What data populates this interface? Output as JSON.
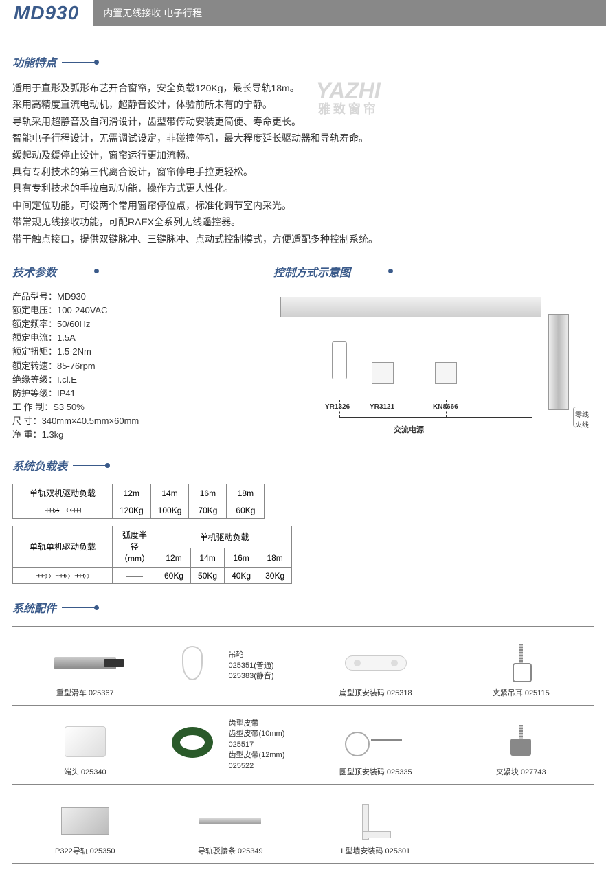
{
  "header": {
    "model": "MD930",
    "subtitle": "内置无线接收 电子行程"
  },
  "watermark": {
    "brand": "YAZHI",
    "sub": "雅致窗帘"
  },
  "sections": {
    "features_title": "功能特点",
    "specs_title": "技术参数",
    "control_title": "控制方式示意图",
    "load_title": "系统负载表",
    "accessories_title": "系统配件"
  },
  "features": [
    "适用于直形及弧形布艺开合窗帘，安全负载120Kg，最长导轨18m。",
    "采用高精度直流电动机，超静音设计，体验前所未有的宁静。",
    "导轨采用超静音及自润滑设计，齿型带传动安装更简便、寿命更长。",
    "智能电子行程设计，无需调试设定，非碰撞停机，最大程度延长驱动器和导轨寿命。",
    "缓起动及缓停止设计，窗帘运行更加流畅。",
    "具有专利技术的第三代离合设计，窗帘停电手拉更轻松。",
    "具有专利技术的手拉启动功能，操作方式更人性化。",
    "中间定位功能，可设两个常用窗帘停位点，标准化调节室内采光。",
    "带常规无线接收功能，可配RAEX全系列无线遥控器。",
    "带干触点接口，提供双键脉冲、三键脉冲、点动式控制模式，方便适配多种控制系统。"
  ],
  "specs": [
    "产品型号：MD930",
    "额定电压：100-240VAC",
    "额定频率：50/60Hz",
    "额定电流：1.5A",
    "额定扭矩：1.5-2Nm",
    "额定转速：85-76rpm",
    "绝缘等级：I.cl.E",
    "防护等级：IP41",
    "工 作 制：S3 50%",
    "尺   寸：340mm×40.5mm×60mm",
    "净   重：1.3kg"
  ],
  "diagram": {
    "remote": "YR1326",
    "panel1": "YR3121",
    "panel2": "KN8666",
    "power": "交流电源",
    "line1": "零线",
    "line2": "火线"
  },
  "load_table1": {
    "header_left": "单轨双机驱动负载",
    "cols": [
      "12m",
      "14m",
      "16m",
      "18m"
    ],
    "row_vals": [
      "120Kg",
      "100Kg",
      "70Kg",
      "60Kg"
    ]
  },
  "load_table2": {
    "header_left": "单轨单机驱动负载",
    "radius_header": "弧度半径（mm）",
    "sub_header": "单机驱动负载",
    "cols": [
      "12m",
      "14m",
      "16m",
      "18m"
    ],
    "radius_val": "——",
    "row_vals": [
      "60Kg",
      "50Kg",
      "40Kg",
      "30Kg"
    ]
  },
  "spring_marks": {
    "left_in": "↢⫞⫞⫞",
    "right_in": "⫞⫞⫞↣",
    "left_out": "⫞⫞⫞↣",
    "right_out": "↢⫞⫞⫞"
  },
  "accessories": {
    "row1": [
      {
        "name": "重型滑车",
        "code": "025367",
        "shape": "ph-rail"
      },
      {
        "name": "吊轮",
        "codes": [
          "025351(普通)",
          "025383(静音)"
        ],
        "shape": "ph-pulley",
        "side": true
      },
      {
        "name": "扁型顶安装码",
        "code": "025318",
        "shape": "ph-flat"
      },
      {
        "name": "夹紧吊耳",
        "code": "025115",
        "shape": "ph-clip"
      }
    ],
    "row2": [
      {
        "name": "端头",
        "code": "025340",
        "shape": "ph-endcap"
      },
      {
        "name": "齿型皮带",
        "codes": [
          "齿型皮带(10mm)",
          "025517",
          "齿型皮带(12mm)",
          "025522"
        ],
        "shape": "ph-belt",
        "side": true
      },
      {
        "name": "圆型顶安装码",
        "code": "025335",
        "shape": "ph-round"
      },
      {
        "name": "夹紧块",
        "code": "027743",
        "shape": "ph-block"
      }
    ],
    "row3": [
      {
        "name": "P322导轨",
        "code": "025350",
        "shape": "ph-track"
      },
      {
        "name": "导轨驳接条",
        "code": "025349",
        "shape": "ph-strip"
      },
      {
        "name": "L型墙安装码",
        "code": "025301",
        "shape": "ph-lbracket"
      },
      {
        "name": "",
        "code": "",
        "shape": ""
      }
    ]
  },
  "colors": {
    "primary": "#3a5a8a",
    "bar": "#888888",
    "text": "#333333",
    "border": "#888888"
  }
}
